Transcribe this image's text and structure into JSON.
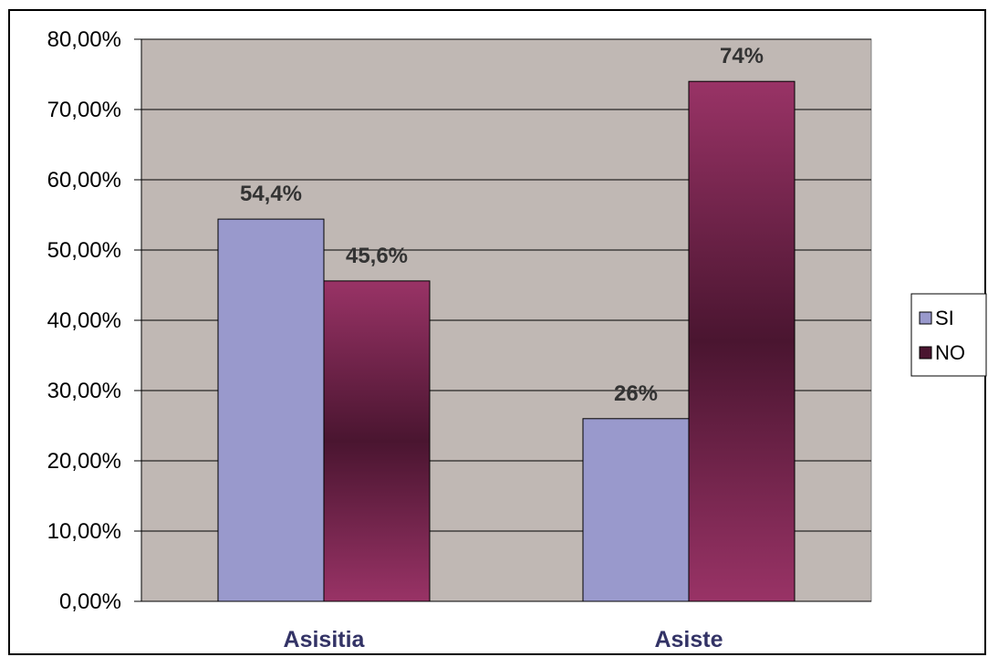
{
  "chart_data": {
    "type": "bar",
    "categories": [
      "Asisitia",
      "Asiste"
    ],
    "series": [
      {
        "name": "SI",
        "values": [
          54.4,
          26
        ],
        "labels": [
          "54,4%",
          "26%"
        ],
        "color": "#9999CC"
      },
      {
        "name": "NO",
        "values": [
          45.6,
          74
        ],
        "labels": [
          "45,6%",
          "74%"
        ],
        "color": "#993366"
      }
    ],
    "yticks": [
      "0,00%",
      "10,00%",
      "20,00%",
      "30,00%",
      "40,00%",
      "50,00%",
      "60,00%",
      "70,00%",
      "80,00%"
    ],
    "ylim": [
      0,
      80
    ],
    "grid": true,
    "legend": "right",
    "colors": {
      "plot_background": "#C0B8B4",
      "category_label": "#333366",
      "no_gradient_dark": "#4A1530"
    }
  }
}
